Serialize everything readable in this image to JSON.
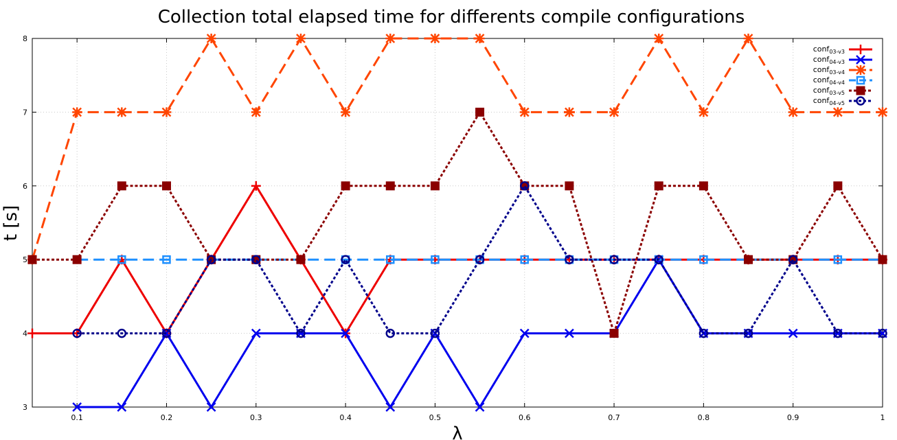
{
  "chart_data": {
    "type": "line",
    "title": "Collection total elapsed time for differents compile configurations",
    "xlabel": "λ",
    "ylabel": "t [s]",
    "xlim": [
      0.05,
      1.0
    ],
    "ylim": [
      3,
      8
    ],
    "xticks": [
      0.1,
      0.2,
      0.3,
      0.4,
      0.5,
      0.6,
      0.7,
      0.8,
      0.9,
      1
    ],
    "xtick_labels": [
      "0.1",
      "0.2",
      "0.3",
      "0.4",
      "0.5",
      "0.6",
      "0.7",
      "0.8",
      "0.9",
      "1"
    ],
    "yticks": [
      3,
      4,
      5,
      6,
      7,
      8
    ],
    "ytick_labels": [
      "3",
      "4",
      "5",
      "6",
      "7",
      "8"
    ],
    "grid": true,
    "legend_position": "top-right",
    "x": [
      0.05,
      0.1,
      0.15,
      0.2,
      0.25,
      0.3,
      0.35,
      0.4,
      0.45,
      0.5,
      0.55,
      0.6,
      0.65,
      0.7,
      0.75,
      0.8,
      0.85,
      0.9,
      0.95,
      1.0
    ],
    "series": [
      {
        "name": "conf",
        "sub": "03-v3",
        "color": "#ee0000",
        "dash": "solid",
        "marker": "plus",
        "values": [
          4,
          4,
          5,
          4,
          5,
          6,
          5,
          4,
          5,
          5,
          5,
          5,
          5,
          5,
          5,
          5,
          5,
          5,
          5,
          5
        ]
      },
      {
        "name": "conf",
        "sub": "04-v3",
        "color": "#0000ee",
        "dash": "solid",
        "marker": "cross",
        "values": [
          null,
          3,
          3,
          4,
          3,
          4,
          4,
          4,
          3,
          4,
          3,
          4,
          4,
          4,
          5,
          4,
          4,
          4,
          4,
          4
        ]
      },
      {
        "name": "conf",
        "sub": "03-v4",
        "color": "#ff4500",
        "dash": "dashed",
        "marker": "star",
        "values": [
          5,
          7,
          7,
          7,
          8,
          7,
          8,
          7,
          8,
          8,
          8,
          7,
          7,
          7,
          8,
          7,
          8,
          7,
          7,
          7
        ]
      },
      {
        "name": "conf",
        "sub": "04-v4",
        "color": "#1e90ff",
        "dash": "dashed",
        "marker": "square",
        "values": [
          null,
          5,
          5,
          5,
          5,
          5,
          5,
          5,
          5,
          5,
          5,
          5,
          5,
          5,
          5,
          5,
          5,
          5,
          5,
          5
        ]
      },
      {
        "name": "conf",
        "sub": "03-v5",
        "color": "#8b0000",
        "dash": "dotted",
        "marker": "filledsquare",
        "values": [
          5,
          5,
          6,
          6,
          5,
          5,
          5,
          6,
          6,
          6,
          7,
          6,
          6,
          4,
          6,
          6,
          5,
          5,
          6,
          5
        ]
      },
      {
        "name": "conf",
        "sub": "04-v5",
        "color": "#00008b",
        "dash": "dotted",
        "marker": "circle",
        "values": [
          null,
          4,
          4,
          4,
          5,
          5,
          4,
          5,
          4,
          4,
          5,
          6,
          5,
          5,
          5,
          4,
          4,
          5,
          4,
          4
        ]
      }
    ]
  }
}
